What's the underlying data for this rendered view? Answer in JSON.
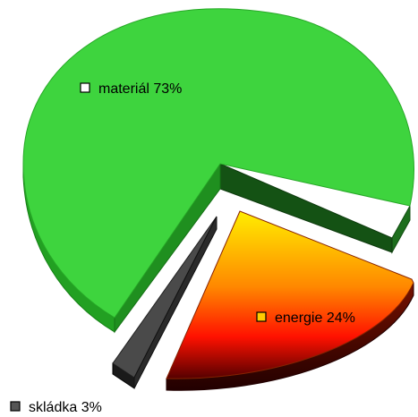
{
  "chart_data": {
    "type": "pie",
    "title": "",
    "slices": [
      {
        "label": "materiál 73%",
        "value": 73,
        "color": "#33cc33"
      },
      {
        "label": "energie 24%",
        "value": 24,
        "color": "#ff4400"
      },
      {
        "label": "skládka 3%",
        "value": 3,
        "color": "#444444"
      }
    ],
    "legend": "labels-on-slices",
    "exploded": true,
    "style": "3d"
  }
}
